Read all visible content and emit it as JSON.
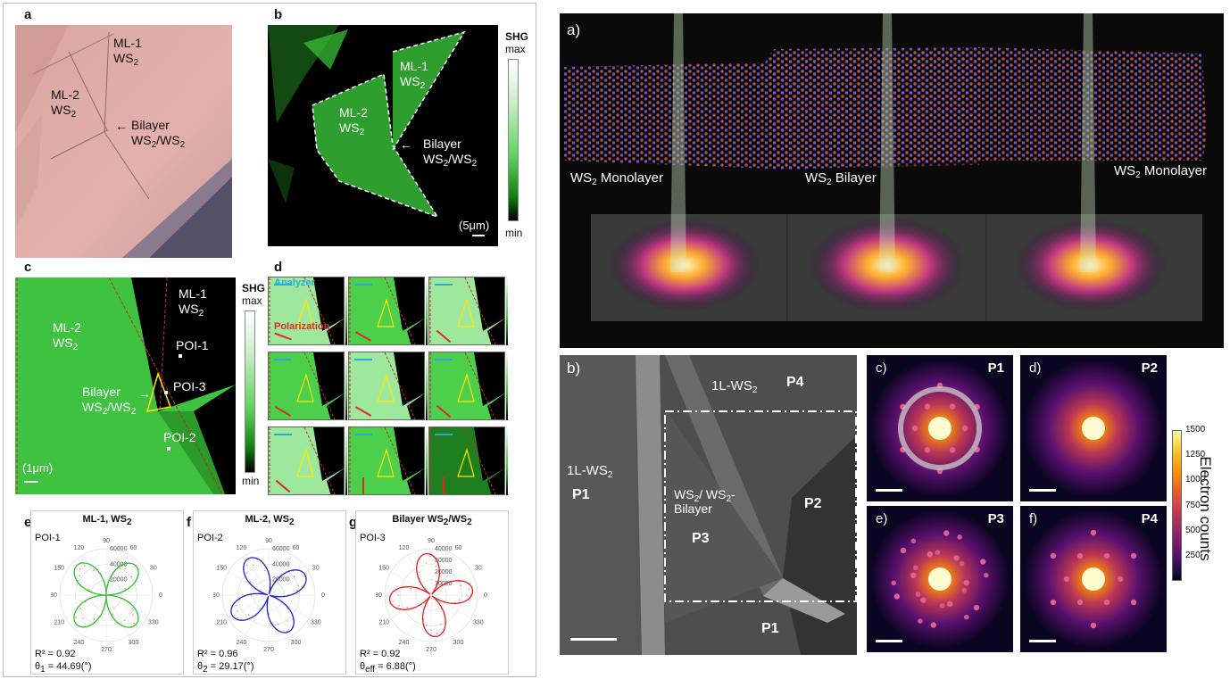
{
  "left_figure": {
    "panel_a": {
      "label": "a",
      "ml1": "ML-1",
      "ml1_sub": "WS",
      "ml1_sub2": "2",
      "ml2": "ML-2",
      "ml2_sub": "WS",
      "ml2_sub2": "2",
      "bilayer": "Bilayer",
      "bilayer_line2": "WS",
      "bilayer_line2b": "/WS",
      "two": "2"
    },
    "panel_b": {
      "label": "b",
      "ml1": "ML-1",
      "ml2": "ML-2",
      "ws": "WS",
      "two": "2",
      "bilayer": "Bilayer",
      "bilayer_line2": "WS",
      "bilayer_line2b": "/WS",
      "scale": "(5μm)",
      "colorbar_title": "SHG",
      "colorbar_max": "max",
      "colorbar_min": "min"
    },
    "panel_c": {
      "label": "c",
      "ml1": "ML-1",
      "ml2": "ML-2",
      "ws": "WS",
      "two": "2",
      "poi1": "POI-1",
      "poi2": "POI-2",
      "poi3": "POI-3",
      "bilayer": "Bilayer",
      "bilayer_line2": "WS",
      "bilayer_line2b": "/WS",
      "scale": "(1μm)",
      "colorbar_title": "SHG",
      "colorbar_max": "max",
      "colorbar_min": "min"
    },
    "panel_d": {
      "label": "d",
      "analyzer": "Analyzer",
      "polarization": "Polarization"
    },
    "polar_plots": [
      {
        "label": "e",
        "title": "ML-1, WS",
        "title_sub": "2",
        "poi": "POI-1",
        "r2": "R² = 0.92",
        "theta_label": "θ",
        "theta_sub": "1",
        "theta_value": " = 44.69(°)",
        "color": "#2bc42b",
        "angle_deg": 44.69
      },
      {
        "label": "f",
        "title": "ML-2, WS",
        "title_sub": "2",
        "poi": "POI-2",
        "r2": "R² = 0.96",
        "theta_label": "θ",
        "theta_sub": "2",
        "theta_value": " = 29.17(°)",
        "color": "#2222cc",
        "angle_deg": 29.17
      },
      {
        "label": "g",
        "title": "Bilayer WS",
        "title_sub": "2",
        "title_rest": "/WS",
        "title_sub2": "2",
        "poi": "POI-3",
        "r2": "R² = 0.92",
        "theta_label": "θ",
        "theta_sub": "eff",
        "theta_value": " = 6.88(°)",
        "color": "#dd2222",
        "angle_deg": 6.88
      }
    ],
    "polar_ticks": {
      "angles": [
        "90",
        "120",
        "60",
        "150",
        "30",
        "180",
        "0",
        "210",
        "330",
        "240",
        "300",
        "270"
      ],
      "radii_ef": [
        "60000",
        "40000",
        "20000"
      ],
      "radii_g": [
        "40000",
        "30000",
        "20000",
        "10000"
      ]
    }
  },
  "right_figure": {
    "panel_a": {
      "label": "a)",
      "left": "WS",
      "left_rest": " Monolayer",
      "center": "WS",
      "center_rest": " Bilayer",
      "right": "WS",
      "right_rest": " Monolayer",
      "two": "2"
    },
    "panel_b": {
      "label": "b)",
      "top_region": "1L-WS",
      "top_p": "P4",
      "left_region": "1L-WS",
      "left_p": "P1",
      "center_region": "WS",
      "center_region_b": "/ WS",
      "center_region_c": "-",
      "center_region_d": "Bilayer",
      "center_p": "P3",
      "right_p": "P2",
      "bottom_p": "P1",
      "two": "2"
    },
    "diffraction": [
      {
        "label": "c)",
        "p": "P1"
      },
      {
        "label": "d)",
        "p": "P2"
      },
      {
        "label": "e)",
        "p": "P3"
      },
      {
        "label": "f)",
        "p": "P4"
      }
    ],
    "colorbar": {
      "title": "Electron counts",
      "ticks": [
        "1500",
        "1250",
        "1000",
        "750",
        "500",
        "250"
      ]
    }
  }
}
